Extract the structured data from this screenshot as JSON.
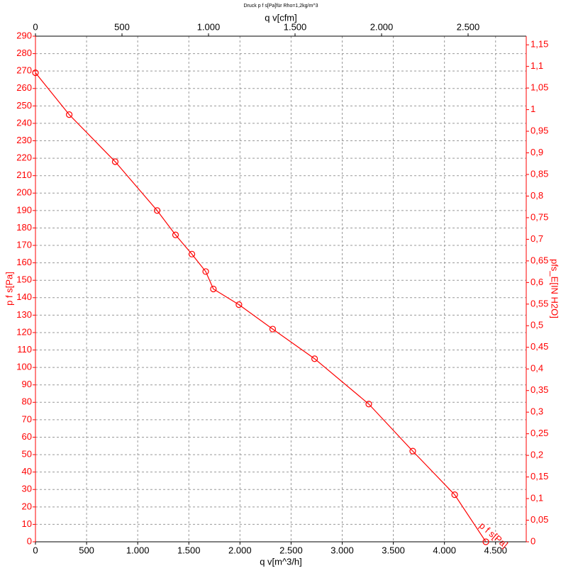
{
  "chart_data": {
    "type": "line",
    "title": "Druck p f s[Pa]für Rho=1,2kg/m^3",
    "x_label": "q v[m^3/h]",
    "x2_label": "q v[cfm]",
    "y_label": "p f s[Pa]",
    "y2_label": "pfs_E[IN H2O]",
    "xlim": [
      0,
      4800
    ],
    "xticks": [
      0,
      500,
      {
        "value": 1000,
        "label": "1.000"
      },
      {
        "value": 1500,
        "label": "1.500"
      },
      {
        "value": 2000,
        "label": "2.000"
      },
      {
        "value": 2500,
        "label": "2.500"
      },
      {
        "value": 3000,
        "label": "3.000"
      },
      {
        "value": 3500,
        "label": "3.500"
      },
      {
        "value": 4000,
        "label": "4.000"
      },
      {
        "value": 4500,
        "label": "4.500"
      }
    ],
    "x2lim": [
      0,
      2836
    ],
    "x2ticks": [
      0,
      500,
      {
        "value": 1000,
        "label": "1.000"
      },
      {
        "value": 1500,
        "label": "1.500"
      },
      {
        "value": 2000,
        "label": "2.000"
      },
      {
        "value": 2500,
        "label": "2.500"
      }
    ],
    "ylim": [
      0,
      290
    ],
    "yticks": [
      0,
      10,
      20,
      30,
      40,
      50,
      60,
      70,
      80,
      90,
      100,
      110,
      120,
      130,
      140,
      150,
      160,
      170,
      180,
      190,
      200,
      210,
      220,
      230,
      240,
      250,
      260,
      270,
      280,
      290
    ],
    "y2lim": [
      0,
      1.17
    ],
    "y2ticks": [
      0,
      {
        "value": 0.05,
        "label": "0,05"
      },
      {
        "value": 0.1,
        "label": "0,1"
      },
      {
        "value": 0.15,
        "label": "0,15"
      },
      {
        "value": 0.2,
        "label": "0,2"
      },
      {
        "value": 0.25,
        "label": "0,25"
      },
      {
        "value": 0.3,
        "label": "0,3"
      },
      {
        "value": 0.35,
        "label": "0,35"
      },
      {
        "value": 0.4,
        "label": "0,4"
      },
      {
        "value": 0.45,
        "label": "0,45"
      },
      {
        "value": 0.5,
        "label": "0,5"
      },
      {
        "value": 0.55,
        "label": "0,55"
      },
      {
        "value": 0.6,
        "label": "0,6"
      },
      {
        "value": 0.65,
        "label": "0,65"
      },
      {
        "value": 0.7,
        "label": "0,7"
      },
      {
        "value": 0.75,
        "label": "0,75"
      },
      {
        "value": 0.8,
        "label": "0,8"
      },
      {
        "value": 0.85,
        "label": "0,85"
      },
      {
        "value": 0.9,
        "label": "0,9"
      },
      {
        "value": 0.95,
        "label": "0,95"
      },
      1,
      {
        "value": 1.05,
        "label": "1,05"
      },
      {
        "value": 1.1,
        "label": "1,1"
      },
      {
        "value": 1.15,
        "label": "1,15"
      }
    ],
    "grid": true,
    "x": [
      0,
      330,
      780,
      1190,
      1370,
      1530,
      1665,
      1740,
      1990,
      2320,
      2730,
      3260,
      3690,
      4100,
      4405
    ],
    "series": [
      {
        "name": "p f s[Pa]",
        "color": "#ff0000",
        "values": [
          269,
          245,
          218,
          190,
          176,
          165,
          155,
          145,
          136,
          122,
          105,
          79,
          52,
          27,
          0
        ]
      }
    ]
  }
}
